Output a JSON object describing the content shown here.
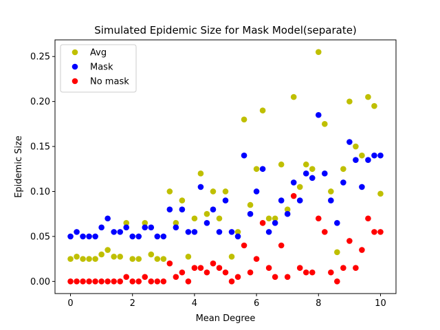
{
  "chart_data": {
    "type": "scatter",
    "title": "Simulated Epidemic Size for Mask Model(separate)",
    "xlabel": "Mean Degree",
    "ylabel": "Epidemic Size",
    "xlim": [
      -0.5,
      10.5
    ],
    "ylim": [
      -0.0135,
      0.2685
    ],
    "xticks": [
      0,
      2,
      4,
      6,
      8,
      10
    ],
    "xtick_labels": [
      "0",
      "2",
      "4",
      "6",
      "8",
      "10"
    ],
    "yticks": [
      0.0,
      0.05,
      0.1,
      0.15,
      0.2,
      0.25
    ],
    "ytick_labels": [
      "0.00",
      "0.05",
      "0.10",
      "0.15",
      "0.20",
      "0.25"
    ],
    "grid": false,
    "legend_position": "upper-left",
    "x": [
      0,
      0.2,
      0.4,
      0.6,
      0.8,
      1.0,
      1.2,
      1.4,
      1.6,
      1.8,
      2.0,
      2.2,
      2.4,
      2.6,
      2.8,
      3.0,
      3.2,
      3.4,
      3.6,
      3.8,
      4.0,
      4.2,
      4.4,
      4.6,
      4.8,
      5.0,
      5.2,
      5.4,
      5.6,
      5.8,
      6.0,
      6.2,
      6.4,
      6.6,
      6.8,
      7.0,
      7.2,
      7.4,
      7.6,
      7.8,
      8.0,
      8.2,
      8.4,
      8.6,
      8.8,
      9.0,
      9.2,
      9.4,
      9.6,
      9.8,
      10.0
    ],
    "series": [
      {
        "name": "Avg",
        "color": "#bfbf00",
        "values": [
          0.025,
          0.0275,
          0.025,
          0.025,
          0.025,
          0.03,
          0.035,
          0.0275,
          0.0275,
          0.065,
          0.025,
          0.025,
          0.065,
          0.03,
          0.025,
          0.025,
          0.1,
          0.065,
          0.09,
          0.0275,
          0.07,
          0.12,
          0.075,
          0.1,
          0.07,
          0.1,
          0.0275,
          0.055,
          0.18,
          0.085,
          0.125,
          0.19,
          0.07,
          0.07,
          0.13,
          0.08,
          0.205,
          0.105,
          0.13,
          0.125,
          0.255,
          0.175,
          0.1,
          0.0325,
          0.125,
          0.2,
          0.15,
          0.14,
          0.205,
          0.195,
          0.0975
        ]
      },
      {
        "name": "Mask",
        "color": "#0000ff",
        "values": [
          0.05,
          0.055,
          0.05,
          0.05,
          0.05,
          0.06,
          0.07,
          0.055,
          0.055,
          0.06,
          0.05,
          0.05,
          0.06,
          0.06,
          0.05,
          0.05,
          0.08,
          0.06,
          0.08,
          0.055,
          0.055,
          0.105,
          0.065,
          0.08,
          0.055,
          0.09,
          0.055,
          0.05,
          0.14,
          0.075,
          0.1,
          0.125,
          0.055,
          0.065,
          0.09,
          0.075,
          0.11,
          0.09,
          0.12,
          0.115,
          0.185,
          0.12,
          0.09,
          0.065,
          0.11,
          0.155,
          0.135,
          0.105,
          0.135,
          0.14,
          0.14
        ]
      },
      {
        "name": "No mask",
        "color": "#ff0000",
        "values": [
          0.0,
          0.0,
          0.0,
          0.0,
          0.0,
          0.0,
          0.0,
          0.0,
          0.0,
          0.005,
          0.0,
          0.0,
          0.005,
          0.0,
          0.0,
          0.0,
          0.02,
          0.005,
          0.01,
          0.0,
          0.015,
          0.015,
          0.01,
          0.02,
          0.015,
          0.01,
          0.0,
          0.005,
          0.04,
          0.01,
          0.025,
          0.065,
          0.015,
          0.005,
          0.04,
          0.005,
          0.095,
          0.015,
          0.01,
          0.01,
          0.07,
          0.055,
          0.01,
          0.0,
          0.015,
          0.045,
          0.015,
          0.035,
          0.07,
          0.055,
          0.055
        ]
      }
    ]
  }
}
